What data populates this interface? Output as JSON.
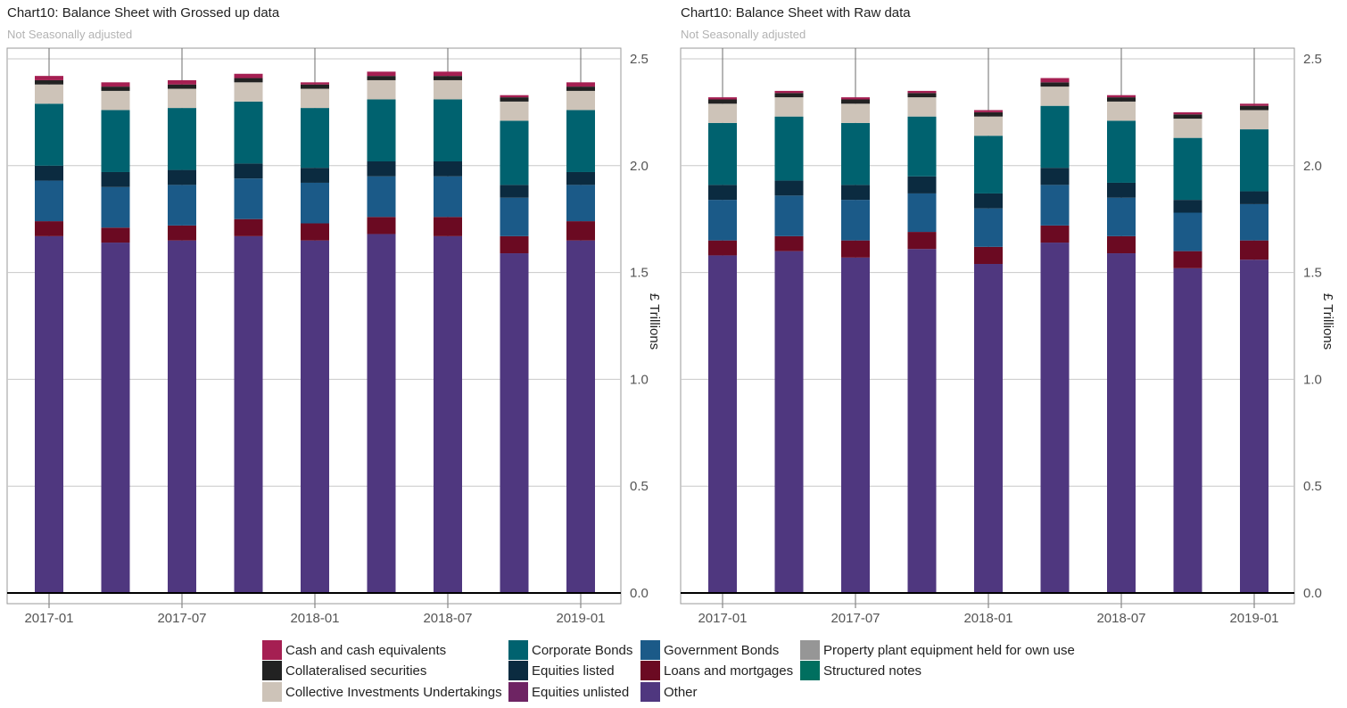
{
  "legend": [
    {
      "name": "Cash and cash equivalents",
      "color": "#a51f52"
    },
    {
      "name": "Collateralised securities",
      "color": "#222222"
    },
    {
      "name": "Collective Investments Undertakings",
      "color": "#cdc3b8"
    },
    {
      "name": "Corporate Bonds",
      "color": "#00626f"
    },
    {
      "name": "Equities  listed",
      "color": "#0b2b40"
    },
    {
      "name": "Equities  unlisted",
      "color": "#6e2463"
    },
    {
      "name": "Government Bonds",
      "color": "#1b5a88"
    },
    {
      "name": "Loans and mortgages",
      "color": "#6b0a22"
    },
    {
      "name": "Other",
      "color": "#4f377f"
    },
    {
      "name": "Property plant  equipment held for own use",
      "color": "#969696"
    },
    {
      "name": "Structured notes",
      "color": "#006f5f"
    }
  ],
  "chart_data": [
    {
      "type": "bar",
      "stacked": true,
      "title": "Chart10: Balance Sheet with Grossed up data",
      "subtitle": "Not Seasonally adjusted",
      "ylabel": "£ Trillions",
      "y_axis_side": "right",
      "ylim": [
        -0.05,
        2.55
      ],
      "yticks": [
        "0.0",
        "0.5",
        "1.0",
        "1.5",
        "2.0",
        "2.5"
      ],
      "xticks": [
        "2017-01",
        "2017-07",
        "2018-01",
        "2018-07",
        "2019-01"
      ],
      "categories": [
        "2016-12",
        "2017-03",
        "2017-06",
        "2017-09",
        "2017-12",
        "2018-03",
        "2018-06",
        "2018-09",
        "2018-12"
      ],
      "series": [
        {
          "name": "Other",
          "values": [
            1.67,
            1.64,
            1.65,
            1.67,
            1.65,
            1.68,
            1.67,
            1.59,
            1.65
          ]
        },
        {
          "name": "Loans and mortgages",
          "values": [
            0.07,
            0.07,
            0.07,
            0.08,
            0.08,
            0.08,
            0.09,
            0.08,
            0.09
          ]
        },
        {
          "name": "Government Bonds",
          "values": [
            0.19,
            0.19,
            0.19,
            0.19,
            0.19,
            0.19,
            0.19,
            0.18,
            0.17
          ]
        },
        {
          "name": "Equities  listed",
          "values": [
            0.07,
            0.07,
            0.07,
            0.07,
            0.07,
            0.07,
            0.07,
            0.06,
            0.06
          ]
        },
        {
          "name": "Corporate Bonds",
          "values": [
            0.29,
            0.29,
            0.29,
            0.29,
            0.28,
            0.29,
            0.29,
            0.3,
            0.29
          ]
        },
        {
          "name": "Collective Investments Undertakings",
          "values": [
            0.09,
            0.09,
            0.09,
            0.09,
            0.09,
            0.09,
            0.09,
            0.09,
            0.09
          ]
        },
        {
          "name": "Collateralised securities",
          "values": [
            0.02,
            0.02,
            0.02,
            0.02,
            0.02,
            0.02,
            0.02,
            0.02,
            0.02
          ]
        },
        {
          "name": "Cash and cash equivalents",
          "values": [
            0.02,
            0.02,
            0.02,
            0.02,
            0.01,
            0.02,
            0.02,
            0.01,
            0.02
          ]
        }
      ]
    },
    {
      "type": "bar",
      "stacked": true,
      "title": "Chart10: Balance Sheet with Raw data",
      "subtitle": "Not Seasonally adjusted",
      "ylabel": "£ Trillions",
      "y_axis_side": "right",
      "ylim": [
        -0.05,
        2.55
      ],
      "yticks": [
        "0.0",
        "0.5",
        "1.0",
        "1.5",
        "2.0",
        "2.5"
      ],
      "xticks": [
        "2017-01",
        "2017-07",
        "2018-01",
        "2018-07",
        "2019-01"
      ],
      "categories": [
        "2016-12",
        "2017-03",
        "2017-06",
        "2017-09",
        "2017-12",
        "2018-03",
        "2018-06",
        "2018-09",
        "2018-12"
      ],
      "series": [
        {
          "name": "Other",
          "values": [
            1.58,
            1.6,
            1.57,
            1.61,
            1.54,
            1.64,
            1.59,
            1.52,
            1.56
          ]
        },
        {
          "name": "Loans and mortgages",
          "values": [
            0.07,
            0.07,
            0.08,
            0.08,
            0.08,
            0.08,
            0.08,
            0.08,
            0.09
          ]
        },
        {
          "name": "Government Bonds",
          "values": [
            0.19,
            0.19,
            0.19,
            0.18,
            0.18,
            0.19,
            0.18,
            0.18,
            0.17
          ]
        },
        {
          "name": "Equities  listed",
          "values": [
            0.07,
            0.07,
            0.07,
            0.08,
            0.07,
            0.08,
            0.07,
            0.06,
            0.06
          ]
        },
        {
          "name": "Corporate Bonds",
          "values": [
            0.29,
            0.3,
            0.29,
            0.28,
            0.27,
            0.29,
            0.29,
            0.29,
            0.29
          ]
        },
        {
          "name": "Collective Investments Undertakings",
          "values": [
            0.09,
            0.09,
            0.09,
            0.09,
            0.09,
            0.09,
            0.09,
            0.09,
            0.09
          ]
        },
        {
          "name": "Collateralised securities",
          "values": [
            0.02,
            0.02,
            0.02,
            0.02,
            0.02,
            0.02,
            0.02,
            0.02,
            0.02
          ]
        },
        {
          "name": "Cash and cash equivalents",
          "values": [
            0.01,
            0.01,
            0.01,
            0.01,
            0.01,
            0.02,
            0.01,
            0.01,
            0.01
          ]
        }
      ]
    }
  ]
}
